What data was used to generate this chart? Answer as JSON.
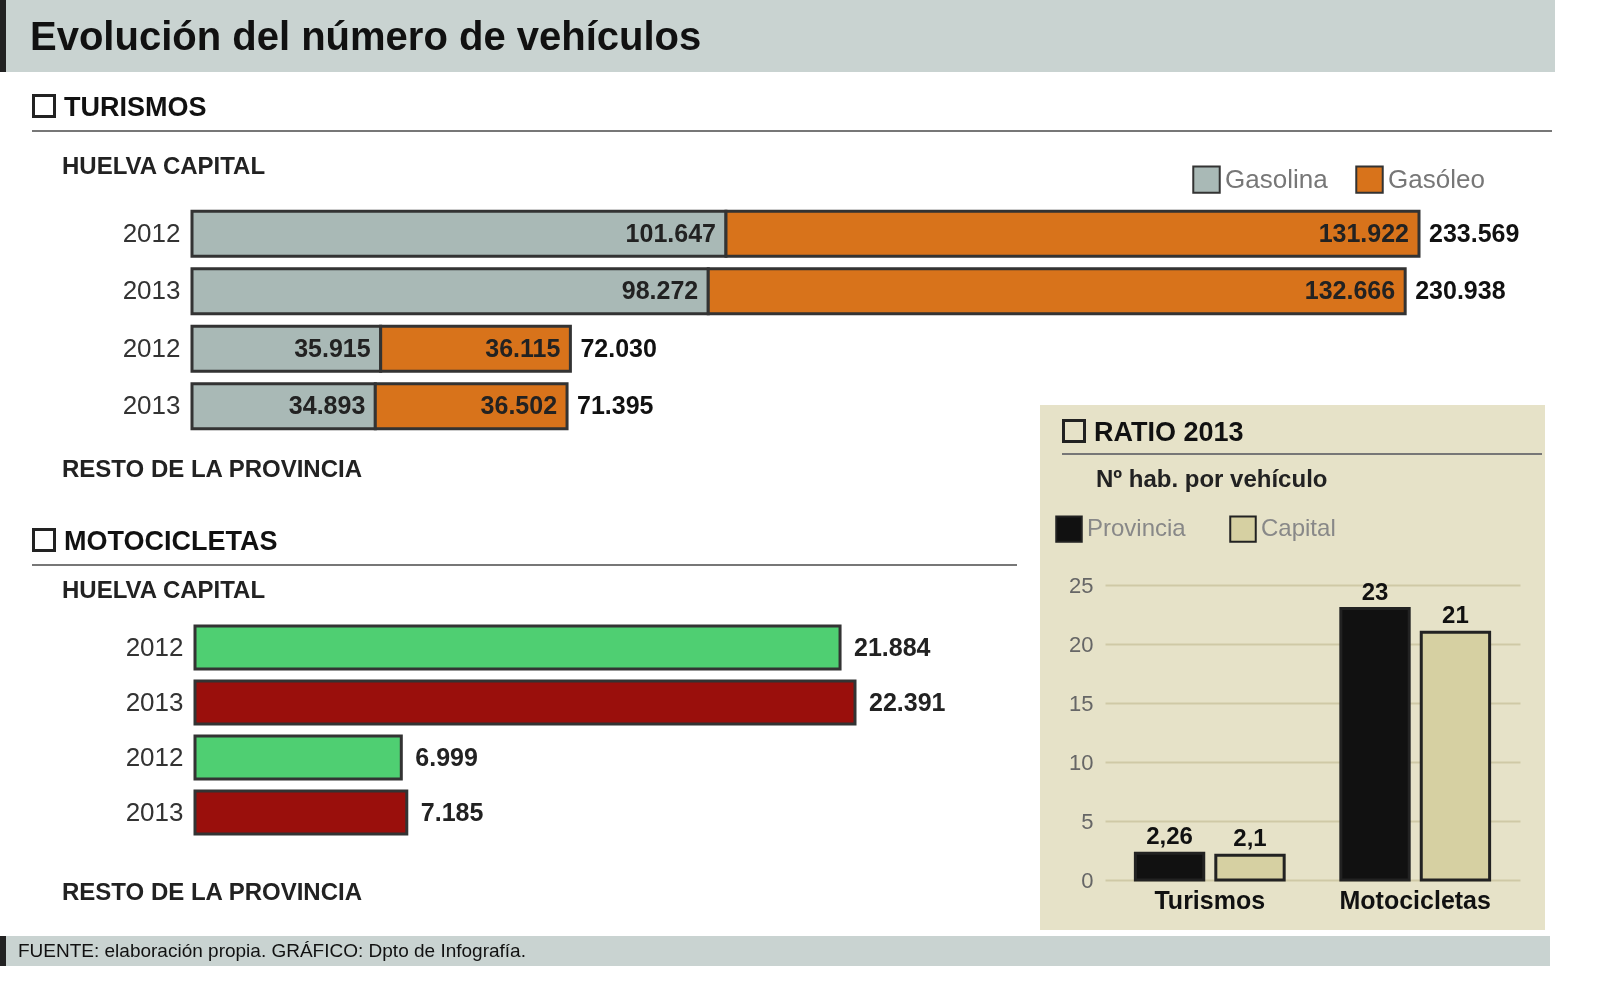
{
  "chart_data": [
    {
      "type": "bar",
      "title": "Evolución del número de vehículos",
      "subtitle": "TURISMOS",
      "orientation": "horizontal",
      "stacked": true,
      "legend": "top right",
      "categories": [
        "2012",
        "2013",
        "2012",
        "2013"
      ],
      "annotations": [
        "HUELVA CAPITAL",
        "RESTO DE LA PROVINCIA"
      ],
      "series": [
        {
          "name": "Gasolina",
          "color": "#a9b9b6",
          "values": [
            101647,
            98272,
            35915,
            34893
          ],
          "value_labels": [
            "101.647",
            "98.272",
            "35.915",
            "34.893"
          ]
        },
        {
          "name": "Gasóleo",
          "color": "#d8731b",
          "values": [
            131922,
            132666,
            36115,
            36502
          ],
          "value_labels": [
            "131.922",
            "132.666",
            "36.115",
            "36.502"
          ]
        }
      ],
      "totals": [
        "233.569",
        "230.938",
        "72.030",
        "71.395"
      ]
    },
    {
      "type": "bar",
      "title": "MOTOCICLETAS",
      "orientation": "horizontal",
      "categories": [
        "2012",
        "2013",
        "2012",
        "2013"
      ],
      "annotations": [
        "HUELVA CAPITAL",
        "RESTO DE LA PROVINCIA",
        "FUENTE: elaboración propia. GRÁFICO: Dpto de Infografía."
      ],
      "values": [
        21884,
        22391,
        6999,
        7185
      ],
      "colors": [
        "#4fcf72",
        "#9a0f0c",
        "#4fcf72",
        "#9a0f0c"
      ],
      "value_labels": [
        "21.884",
        "22.391",
        "6.999",
        "7.185"
      ]
    },
    {
      "type": "bar",
      "title": "RATIO 2013",
      "subtitle": "Nº hab. por vehículo",
      "legend": "top left",
      "grid": "y",
      "categories": [
        "Turismos",
        "Motocicletas"
      ],
      "ylim": [
        0,
        25
      ],
      "yticks": [
        0,
        5,
        10,
        15,
        20,
        25
      ],
      "series": [
        {
          "name": "Provincia",
          "color": "#111111",
          "values": [
            2.26,
            23
          ],
          "value_labels": [
            "2,26",
            "23"
          ]
        },
        {
          "name": "Capital",
          "color": "#d6d0a2",
          "values": [
            2.1,
            21
          ],
          "value_labels": [
            "2,1",
            "21"
          ]
        }
      ]
    }
  ]
}
